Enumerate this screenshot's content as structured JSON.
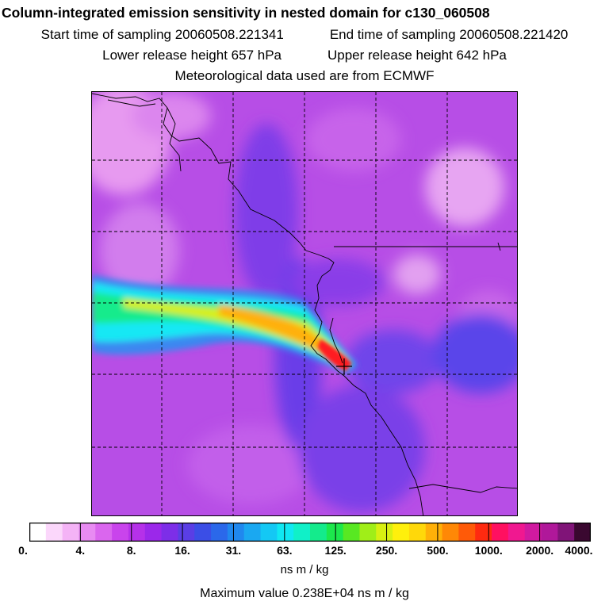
{
  "titles": {
    "main": "Column-integrated emission sensitivity in nested domain for c130_060508",
    "start": "Start time of sampling 20060508.221341",
    "end": "End time of sampling 20060508.221420",
    "lower": "Lower release height  657 hPa",
    "upper": "Upper release height  642 hPa",
    "met": "Meteorological data used are from ECMWF"
  },
  "colorbar": {
    "tick_labels": [
      "0.",
      "4.",
      "8.",
      "16.",
      "31.",
      "63.",
      "125.",
      "250.",
      "500.",
      "1000.",
      "2000.",
      "4000."
    ],
    "colors": [
      "#ffffff",
      "#fbd7fb",
      "#f4b3f6",
      "#e88bf2",
      "#da66ee",
      "#c944ec",
      "#b531e9",
      "#9b28ea",
      "#7d2ee8",
      "#5a3ee5",
      "#3b4ee6",
      "#2b68ea",
      "#2088ee",
      "#1aa8f1",
      "#14c8f4",
      "#10e8f2",
      "#10f0c8",
      "#14eb8c",
      "#1ce84c",
      "#58e822",
      "#a0ee18",
      "#d8f012",
      "#fff00c",
      "#ffd80a",
      "#ffb008",
      "#ff8806",
      "#ff5a08",
      "#ff2a10",
      "#ff1060",
      "#f01890",
      "#d01aa0",
      "#b0189a",
      "#801478",
      "#3a0830"
    ],
    "units": "ns m / kg"
  },
  "max_value": "Maximum value  0.238E+04 ns m / kg",
  "map": {
    "background_color": "#b74ee6",
    "plume_colors": [
      "#3b88f0",
      "#14e8f4",
      "#14eb8c",
      "#d8f012",
      "#ffb008",
      "#ff2a10"
    ],
    "receptor_marker": "plus"
  }
}
